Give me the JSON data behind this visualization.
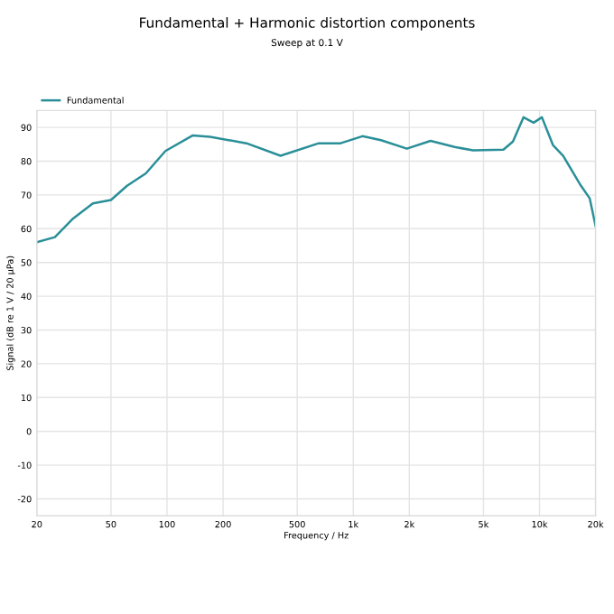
{
  "chart_data": {
    "type": "line",
    "title": "Fundamental + Harmonic distortion components",
    "subtitle": "Sweep at 0.1 V",
    "xlabel": "Frequency / Hz",
    "ylabel": "Signal (dB re 1 V / 20 µPa)",
    "log": "x",
    "xlim": [
      20,
      20000
    ],
    "ylim": [
      -25,
      95
    ],
    "xticks": [
      {
        "value": 20,
        "label": "20"
      },
      {
        "value": 50,
        "label": "50"
      },
      {
        "value": 100,
        "label": "100"
      },
      {
        "value": 200,
        "label": "200"
      },
      {
        "value": 500,
        "label": "500"
      },
      {
        "value": 1000,
        "label": "1k"
      },
      {
        "value": 2000,
        "label": "2k"
      },
      {
        "value": 5000,
        "label": "5k"
      },
      {
        "value": 10000,
        "label": "10k"
      },
      {
        "value": 20000,
        "label": "20k"
      }
    ],
    "yticks": [
      -20,
      -10,
      0,
      10,
      20,
      30,
      40,
      50,
      60,
      70,
      80,
      90
    ],
    "grid": true,
    "legend": "top left",
    "marker": "none",
    "line_style": "solid",
    "x": [
      20,
      25,
      31,
      40,
      50,
      61,
      77,
      98,
      137,
      170,
      267,
      407,
      653,
      855,
      1120,
      1410,
      1940,
      2600,
      3500,
      4400,
      6400,
      7200,
      8200,
      9300,
      10300,
      11800,
      13400,
      16700,
      18600,
      20000
    ],
    "series": [
      {
        "name": "Fundamental",
        "color": "#2a8f98",
        "values": [
          56,
          57.5,
          62.8,
          67.5,
          68.5,
          72.7,
          76.4,
          83,
          87.6,
          87.2,
          85.3,
          81.6,
          85.3,
          85.3,
          87.4,
          86.2,
          83.7,
          86,
          84.2,
          83.2,
          83.4,
          85.8,
          93,
          91.4,
          93,
          84.8,
          81.6,
          72.7,
          69,
          60.8
        ]
      }
    ]
  }
}
